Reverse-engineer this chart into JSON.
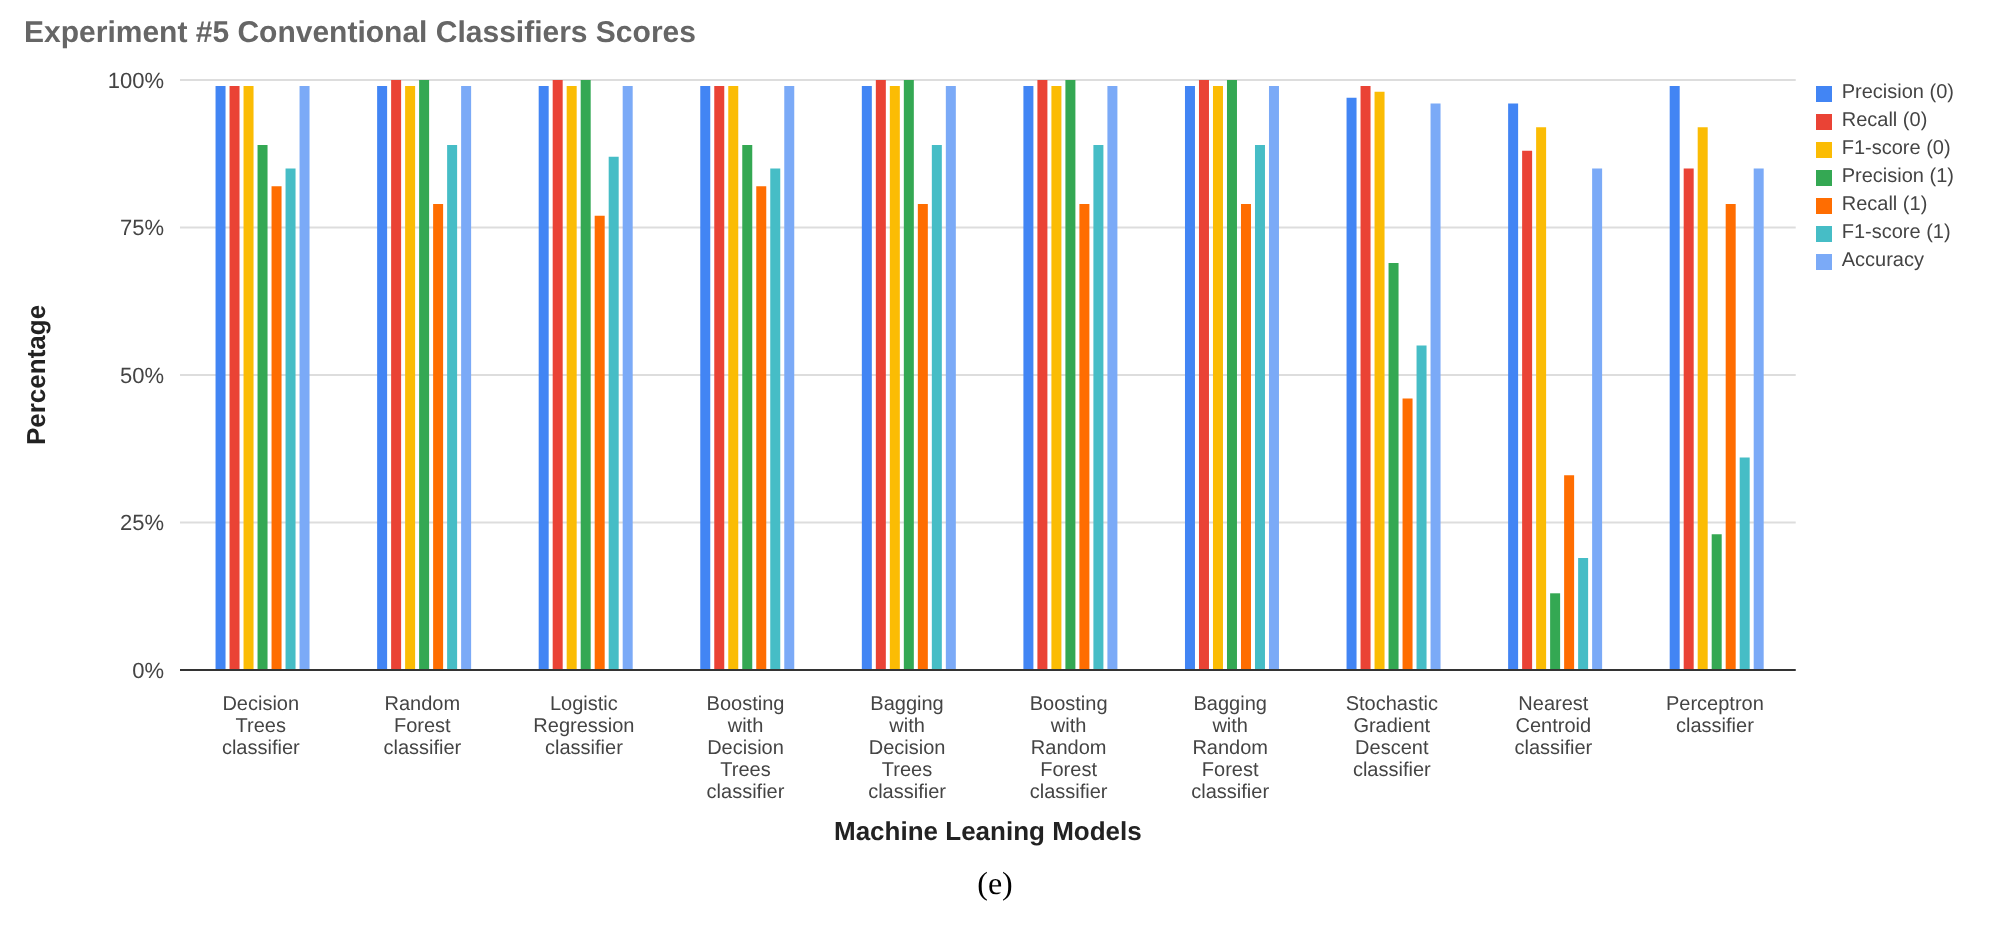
{
  "chart_data": {
    "type": "bar",
    "title": "Experiment #5 Conventional Classifiers Scores",
    "xlabel": "Machine Leaning Models",
    "ylabel": "Percentage",
    "annotations": [
      "(e)"
    ],
    "categories": [
      "Decision Trees classifier",
      "Random Forest classifier",
      "Logistic Regression classifier",
      "Boosting with Decision Trees classifier",
      "Bagging with Decision Trees classifier",
      "Boosting with Random Forest classifier",
      "Bagging with Random Forest classifier",
      "Stochastic Gradient Descent classifier",
      "Nearest Centroid classifier",
      "Perceptron classifier"
    ],
    "series": [
      {
        "name": "Precision (0)",
        "color": "#4285f4",
        "values": [
          99,
          99,
          99,
          99,
          99,
          99,
          99,
          97,
          96,
          99
        ]
      },
      {
        "name": "Recall (0)",
        "color": "#ea4335",
        "values": [
          99,
          100,
          100,
          99,
          100,
          100,
          100,
          99,
          88,
          85
        ]
      },
      {
        "name": "F1-score (0)",
        "color": "#fbbc04",
        "values": [
          99,
          99,
          99,
          99,
          99,
          99,
          99,
          98,
          92,
          92
        ]
      },
      {
        "name": "Precision (1)",
        "color": "#34a853",
        "values": [
          89,
          100,
          100,
          89,
          100,
          100,
          100,
          69,
          13,
          23
        ]
      },
      {
        "name": "Recall (1)",
        "color": "#ff6d01",
        "values": [
          82,
          79,
          77,
          82,
          79,
          79,
          79,
          46,
          33,
          79
        ]
      },
      {
        "name": "F1-score (1)",
        "color": "#46bdc6",
        "values": [
          85,
          89,
          87,
          85,
          89,
          89,
          89,
          55,
          19,
          36
        ]
      },
      {
        "name": "Accuracy",
        "color": "#7baaf7",
        "values": [
          99,
          99,
          99,
          99,
          99,
          99,
          99,
          96,
          85,
          85
        ]
      }
    ],
    "ylim": [
      0,
      100
    ],
    "yticks": [
      {
        "value": 0,
        "label": "0%"
      },
      {
        "value": 25,
        "label": "25%"
      },
      {
        "value": 50,
        "label": "50%"
      },
      {
        "value": 75,
        "label": "75%"
      },
      {
        "value": 100,
        "label": "100%"
      }
    ],
    "grid": "y",
    "legend": "top right"
  }
}
